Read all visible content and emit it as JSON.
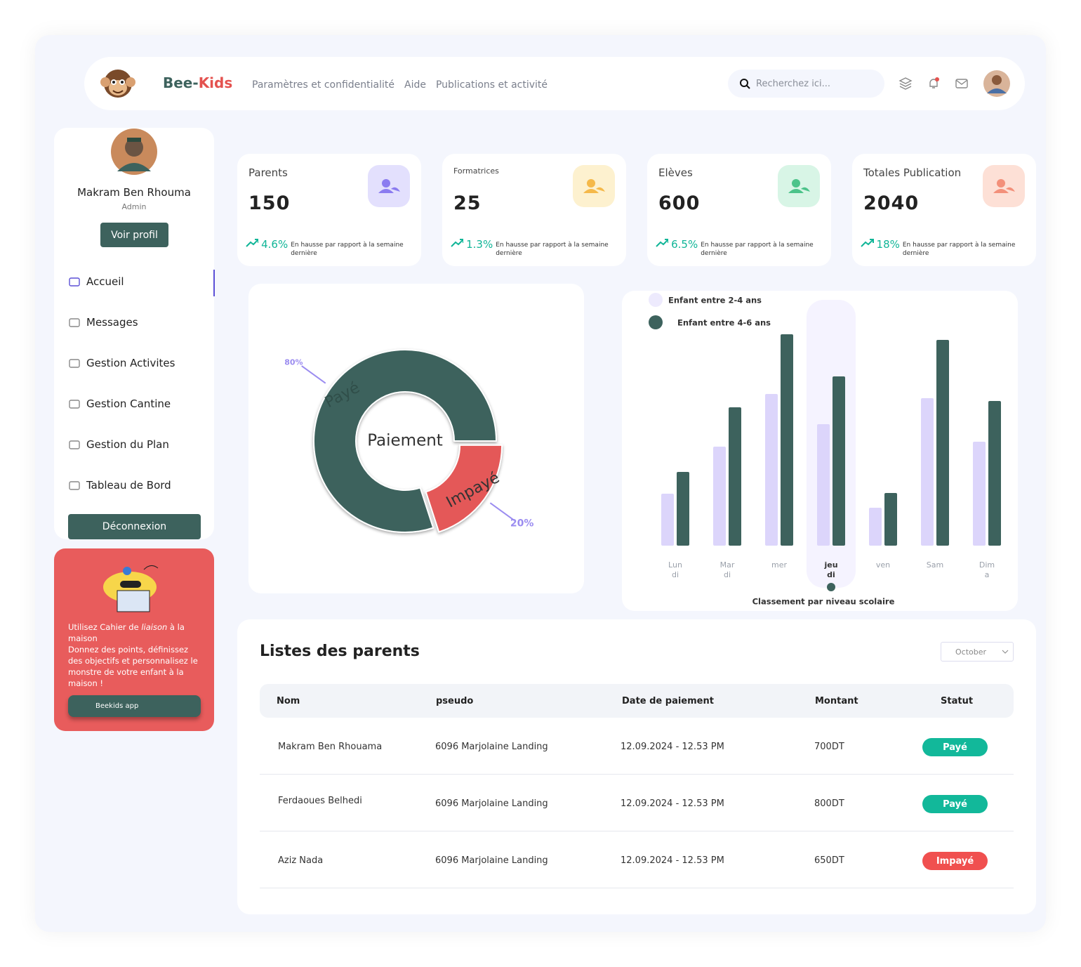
{
  "header": {
    "brand": [
      "Bee-",
      "Kids"
    ],
    "nav": [
      "Paramètres et confidentialité",
      "Aide",
      "Publications et activité"
    ],
    "search_placeholder": "Recherchez ici..."
  },
  "sidebar": {
    "name": "Makram Ben Rhouma",
    "role": "Admin",
    "profile_button": "Voir profil",
    "menu": [
      "Accueil",
      "Messages",
      "Gestion Activites",
      "Gestion Cantine",
      "Gestion du Plan",
      "Tableau de Bord"
    ],
    "logout": "Déconnexion"
  },
  "promo": {
    "text1": "Utilisez Cahier de ",
    "italic": "liaison",
    "text2": " à la maison",
    "text3": "Donnez des points, définissez des objectifs et personnalisez le monstre de votre enfant à la maison !",
    "button": "Beekids app"
  },
  "stats": [
    {
      "title": "Parents",
      "value": 150,
      "change": "4.6%",
      "note": "En hausse par rapport à la semaine dernière"
    },
    {
      "title": "Formatrices",
      "value": 25,
      "change": "1.3%",
      "note": "En hausse par rapport à la semaine dernière"
    },
    {
      "title": "Elèves",
      "value": 600,
      "change": "6.5%",
      "note": "En hausse par rapport à la semaine dernière"
    },
    {
      "title": "Totales Publication",
      "value": 2040,
      "change": "18%",
      "note": "En hausse par rapport à la semaine dernière"
    }
  ],
  "chart_data": [
    {
      "type": "pie",
      "center_label": "Paiement",
      "categories": [
        "Payé",
        "Impayé"
      ],
      "values": [
        80,
        20
      ],
      "value_labels": [
        "80%",
        "20%"
      ],
      "colors": [
        "#3d625d",
        "#e45858"
      ]
    },
    {
      "type": "bar",
      "categories": [
        "Lundi",
        "Mardi",
        "mer",
        "jeudi",
        "ven",
        "Sam",
        "Dima"
      ],
      "highlight": "jeudi",
      "xlabel": "Classement par niveau scolaire",
      "ylim": [
        0,
        310
      ],
      "series": [
        {
          "name": "Enfant entre 2-4 ans",
          "color": "#dcd5fb",
          "values": [
            74,
            141,
            216,
            173,
            54,
            210,
            148
          ]
        },
        {
          "name": "Enfant entre 4-6 ans",
          "color": "#3d625d",
          "values": [
            105,
            197,
            301,
            241,
            75,
            293,
            206
          ]
        }
      ]
    }
  ],
  "table": {
    "title": "Listes des parents",
    "filter": "October",
    "headers": [
      "Nom",
      "pseudo",
      "Date de paiement",
      "Montant",
      "Statut"
    ],
    "rows": [
      {
        "nom": "Makram Ben Rhouama",
        "pseudo": "6096 Marjolaine Landing",
        "date": "12.09.2024 - 12.53 PM",
        "montant": "700DT",
        "statut": "Payé",
        "statut_color": "#12b89a"
      },
      {
        "nom": "Ferdaoues Belhedi",
        "pseudo": "6096 Marjolaine Landing",
        "date": "12.09.2024 - 12.53 PM",
        "montant": "800DT",
        "statut": "Payé",
        "statut_color": "#12b89a"
      },
      {
        "nom": "Aziz Nada",
        "pseudo": "6096 Marjolaine Landing",
        "date": "12.09.2024 - 12.53 PM",
        "montant": "650DT",
        "statut": "Impayé",
        "statut_color": "#f0504f"
      }
    ]
  }
}
